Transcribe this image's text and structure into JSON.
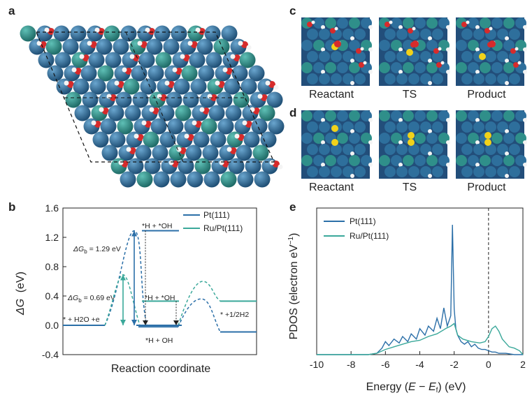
{
  "panels": {
    "a": {
      "letter": "a"
    },
    "c": {
      "letter": "c",
      "captions": [
        "Reactant",
        "TS",
        "Product"
      ]
    },
    "d": {
      "letter": "d",
      "captions": [
        "Reactant",
        "TS",
        "Product"
      ]
    }
  },
  "colors": {
    "pt": "#2b6fa8",
    "ru": "#3aa89a",
    "atom_pt": "#2e6f9c",
    "atom_ru": "#2f8f8a",
    "oxygen": "#d62b2b",
    "hydrogen": "#f4f4f4",
    "sulfur_yellow": "#f1d21a"
  },
  "chart_data": [
    {
      "panel": "b",
      "type": "line",
      "subtype": "reaction-energy-diagram",
      "xlabel": "Reaction coordinate",
      "ylabel_main": "ΔG",
      "ylabel_unit": "(eV)",
      "ylim": [
        -0.4,
        1.6
      ],
      "yticks": [
        "-0.4",
        "0.0",
        "0.4",
        "0.8",
        "1.2",
        "1.6"
      ],
      "ytick_values": [
        -0.4,
        0.0,
        0.4,
        0.8,
        1.2,
        1.6
      ],
      "legend": {
        "placement": "top-right",
        "entries": [
          "Pt(111)",
          "Ru/Pt(111)"
        ]
      },
      "series": [
        {
          "name": "Pt(111)",
          "levels": [
            0.0,
            1.29,
            -0.02,
            -0.09
          ],
          "barrier": 1.29
        },
        {
          "name": "Ru/Pt(111)",
          "levels": [
            0.0,
            0.69,
            0.33,
            0.33
          ],
          "barrier": 0.69
        }
      ],
      "annotations": {
        "dg_pt_prefix": "ΔG",
        "dg_pt_sub": "b",
        "dg_pt_value": " = 1.29 eV",
        "dg_ru_prefix": "ΔG",
        "dg_ru_sub": "b",
        "dg_ru_value": " = 0.69 eV",
        "start_label": "* + H2O +e",
        "ts_label": "*H + *OH",
        "ts_label2": "*H + *OH",
        "final_label": "*H + OH",
        "end_label": "* +1/2H2"
      }
    },
    {
      "panel": "e",
      "type": "line",
      "subtype": "density-of-states",
      "xlabel": "Energy (E − Ef) (eV)",
      "ylabel": "PDOS (electron eV−1)",
      "xlim": [
        -10,
        2
      ],
      "xticks": [
        "-10",
        "-8",
        "-6",
        "-4",
        "-2",
        "0",
        "2"
      ],
      "xtick_values": [
        -10,
        -8,
        -6,
        -4,
        -2,
        0,
        2
      ],
      "fermi_level": 0,
      "legend": {
        "placement": "top-left",
        "entries": [
          "Pt(111)",
          "Ru/Pt(111)"
        ]
      },
      "series": [
        {
          "name": "Pt(111)",
          "x": [
            -10,
            -7,
            -6.5,
            -6.2,
            -6.0,
            -5.8,
            -5.5,
            -5.2,
            -5.0,
            -4.7,
            -4.5,
            -4.2,
            -4.0,
            -3.7,
            -3.5,
            -3.2,
            -3.0,
            -2.8,
            -2.6,
            -2.4,
            -2.2,
            -2.1,
            -2.0,
            -1.9,
            -1.8,
            -1.6,
            -1.4,
            -1.2,
            -1.0,
            -0.8,
            -0.6,
            -0.4,
            -0.2,
            0.0,
            0.2,
            0.4,
            0.6,
            0.8,
            1.0,
            1.5,
            2.0
          ],
          "y": [
            0,
            0,
            0.01,
            0.05,
            0.1,
            0.07,
            0.12,
            0.09,
            0.14,
            0.1,
            0.16,
            0.12,
            0.2,
            0.15,
            0.22,
            0.18,
            0.28,
            0.2,
            0.36,
            0.22,
            0.3,
            1.0,
            0.35,
            0.2,
            0.15,
            0.1,
            0.08,
            0.1,
            0.06,
            0.08,
            0.05,
            0.04,
            0.04,
            0.03,
            0.02,
            0.02,
            0.01,
            0.01,
            0.01,
            0,
            0
          ]
        },
        {
          "name": "Ru/Pt(111)",
          "x": [
            -10,
            -7,
            -6.5,
            -6.0,
            -5.5,
            -5.0,
            -4.5,
            -4.0,
            -3.5,
            -3.0,
            -2.5,
            -2.2,
            -2.0,
            -1.8,
            -1.5,
            -1.0,
            -0.5,
            -0.2,
            0.0,
            0.2,
            0.4,
            0.6,
            0.8,
            1.0,
            1.2,
            1.5,
            1.8,
            2.0
          ],
          "y": [
            0,
            0,
            0.01,
            0.04,
            0.06,
            0.08,
            0.1,
            0.11,
            0.14,
            0.16,
            0.2,
            0.22,
            0.24,
            0.15,
            0.12,
            0.1,
            0.09,
            0.1,
            0.14,
            0.2,
            0.22,
            0.18,
            0.12,
            0.09,
            0.06,
            0.05,
            0.03,
            0
          ]
        }
      ]
    }
  ],
  "labels": {
    "b_letter": "b",
    "e_letter": "e"
  }
}
